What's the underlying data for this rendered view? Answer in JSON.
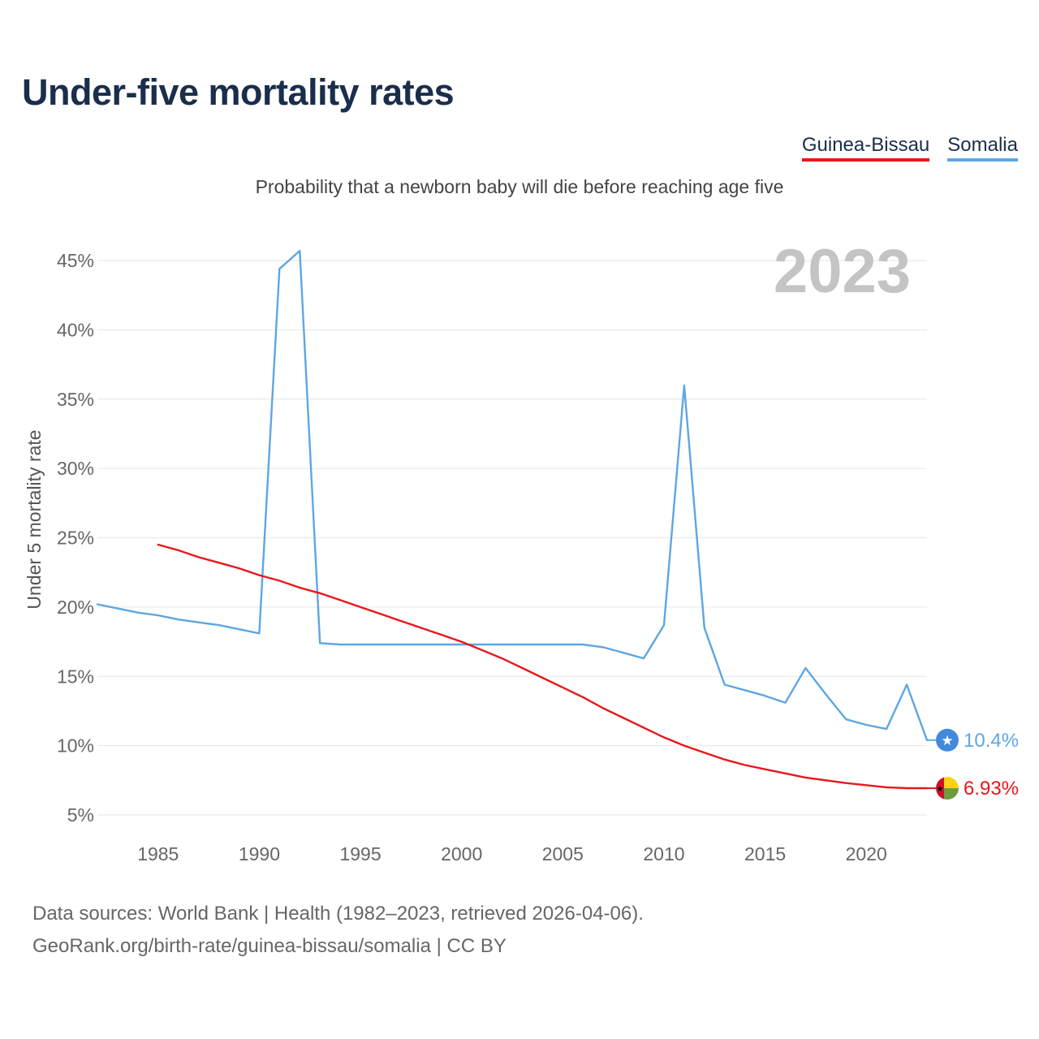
{
  "title": "Under-five mortality rates",
  "subtitle": "Probability that a newborn baby will die before reaching age five",
  "legend": [
    {
      "label": "Guinea-Bissau",
      "color": "#e8171b"
    },
    {
      "label": "Somalia",
      "color": "#5ea6e3"
    }
  ],
  "year_label": "2023",
  "sources": {
    "line1": "Data sources: World Bank | Health (1982–2023, retrieved 2026-04-06).",
    "line2": "GeoRank.org/birth-rate/guinea-bissau/somalia | CC BY"
  },
  "chart_data": {
    "type": "line",
    "title": "Under-five mortality rates",
    "ylabel": "Under 5 mortality rate",
    "xlabel": "",
    "xlim": [
      1982,
      2023
    ],
    "ylim": [
      4,
      46.5
    ],
    "x_ticks": [
      1985,
      1990,
      1995,
      2000,
      2005,
      2010,
      2015,
      2020
    ],
    "y_ticks": [
      5,
      10,
      15,
      20,
      25,
      30,
      35,
      40,
      45
    ],
    "y_tick_labels": [
      "5%",
      "10%",
      "15%",
      "20%",
      "25%",
      "30%",
      "35%",
      "40%",
      "45%"
    ],
    "series": [
      {
        "name": "Somalia",
        "color": "#5ea6e3",
        "end_label": "10.4%",
        "icon": "somalia-flag-icon",
        "x": [
          1982,
          1983,
          1984,
          1985,
          1986,
          1987,
          1988,
          1989,
          1990,
          1991,
          1992,
          1993,
          1994,
          1995,
          1996,
          1997,
          1998,
          1999,
          2000,
          2001,
          2002,
          2003,
          2004,
          2005,
          2006,
          2007,
          2008,
          2009,
          2010,
          2011,
          2012,
          2013,
          2014,
          2015,
          2016,
          2017,
          2018,
          2019,
          2020,
          2021,
          2022,
          2023
        ],
        "values": [
          20.2,
          19.9,
          19.6,
          19.4,
          19.1,
          18.9,
          18.7,
          18.4,
          18.1,
          44.4,
          45.7,
          17.4,
          17.3,
          17.3,
          17.3,
          17.3,
          17.3,
          17.3,
          17.3,
          17.3,
          17.3,
          17.3,
          17.3,
          17.3,
          17.3,
          17.1,
          16.7,
          16.3,
          18.7,
          36.0,
          18.5,
          14.4,
          14.0,
          13.6,
          13.1,
          15.6,
          13.7,
          11.9,
          11.5,
          11.2,
          14.4,
          10.4
        ]
      },
      {
        "name": "Guinea-Bissau",
        "color": "#e8171b",
        "end_label": "6.93%",
        "icon": "guinea-bissau-flag-icon",
        "x": [
          1985,
          1986,
          1987,
          1988,
          1989,
          1990,
          1991,
          1992,
          1993,
          1994,
          1995,
          1996,
          1997,
          1998,
          1999,
          2000,
          2001,
          2002,
          2003,
          2004,
          2005,
          2006,
          2007,
          2008,
          2009,
          2010,
          2011,
          2012,
          2013,
          2014,
          2015,
          2016,
          2017,
          2018,
          2019,
          2020,
          2021,
          2022,
          2023
        ],
        "values": [
          24.5,
          24.1,
          23.6,
          23.2,
          22.8,
          22.3,
          21.9,
          21.4,
          21.0,
          20.5,
          20.0,
          19.5,
          19.0,
          18.5,
          18.0,
          17.5,
          16.9,
          16.3,
          15.6,
          14.9,
          14.2,
          13.5,
          12.7,
          12.0,
          11.3,
          10.6,
          10.0,
          9.5,
          9.0,
          8.6,
          8.3,
          8.0,
          7.7,
          7.5,
          7.3,
          7.15,
          7.0,
          6.93,
          6.93
        ]
      }
    ]
  }
}
